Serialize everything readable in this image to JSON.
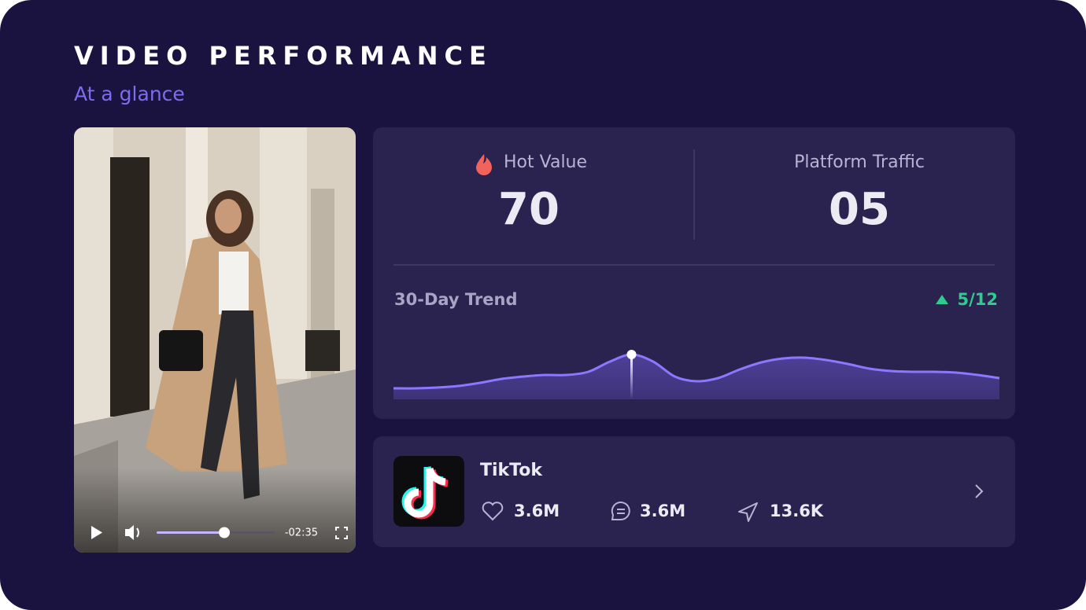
{
  "header": {
    "title": "VIDEO PERFORMANCE",
    "subtitle": "At a glance"
  },
  "video": {
    "time": "-02:35"
  },
  "stats": [
    {
      "label": "Hot Value",
      "value": "70"
    },
    {
      "label": "Platform Traffic",
      "value": "05"
    }
  ],
  "trend": {
    "title": "30-Day Trend",
    "change": "5/12",
    "values": [
      14,
      14,
      15,
      17,
      21,
      26,
      29,
      31,
      31,
      35,
      48,
      57,
      48,
      29,
      23,
      27,
      38,
      47,
      52,
      53,
      50,
      45,
      39,
      36,
      35,
      35,
      34,
      31,
      27
    ]
  },
  "platform": {
    "name": "TikTok",
    "likes": "3.6M",
    "comments": "3.6M",
    "shares": "13.6K"
  }
}
